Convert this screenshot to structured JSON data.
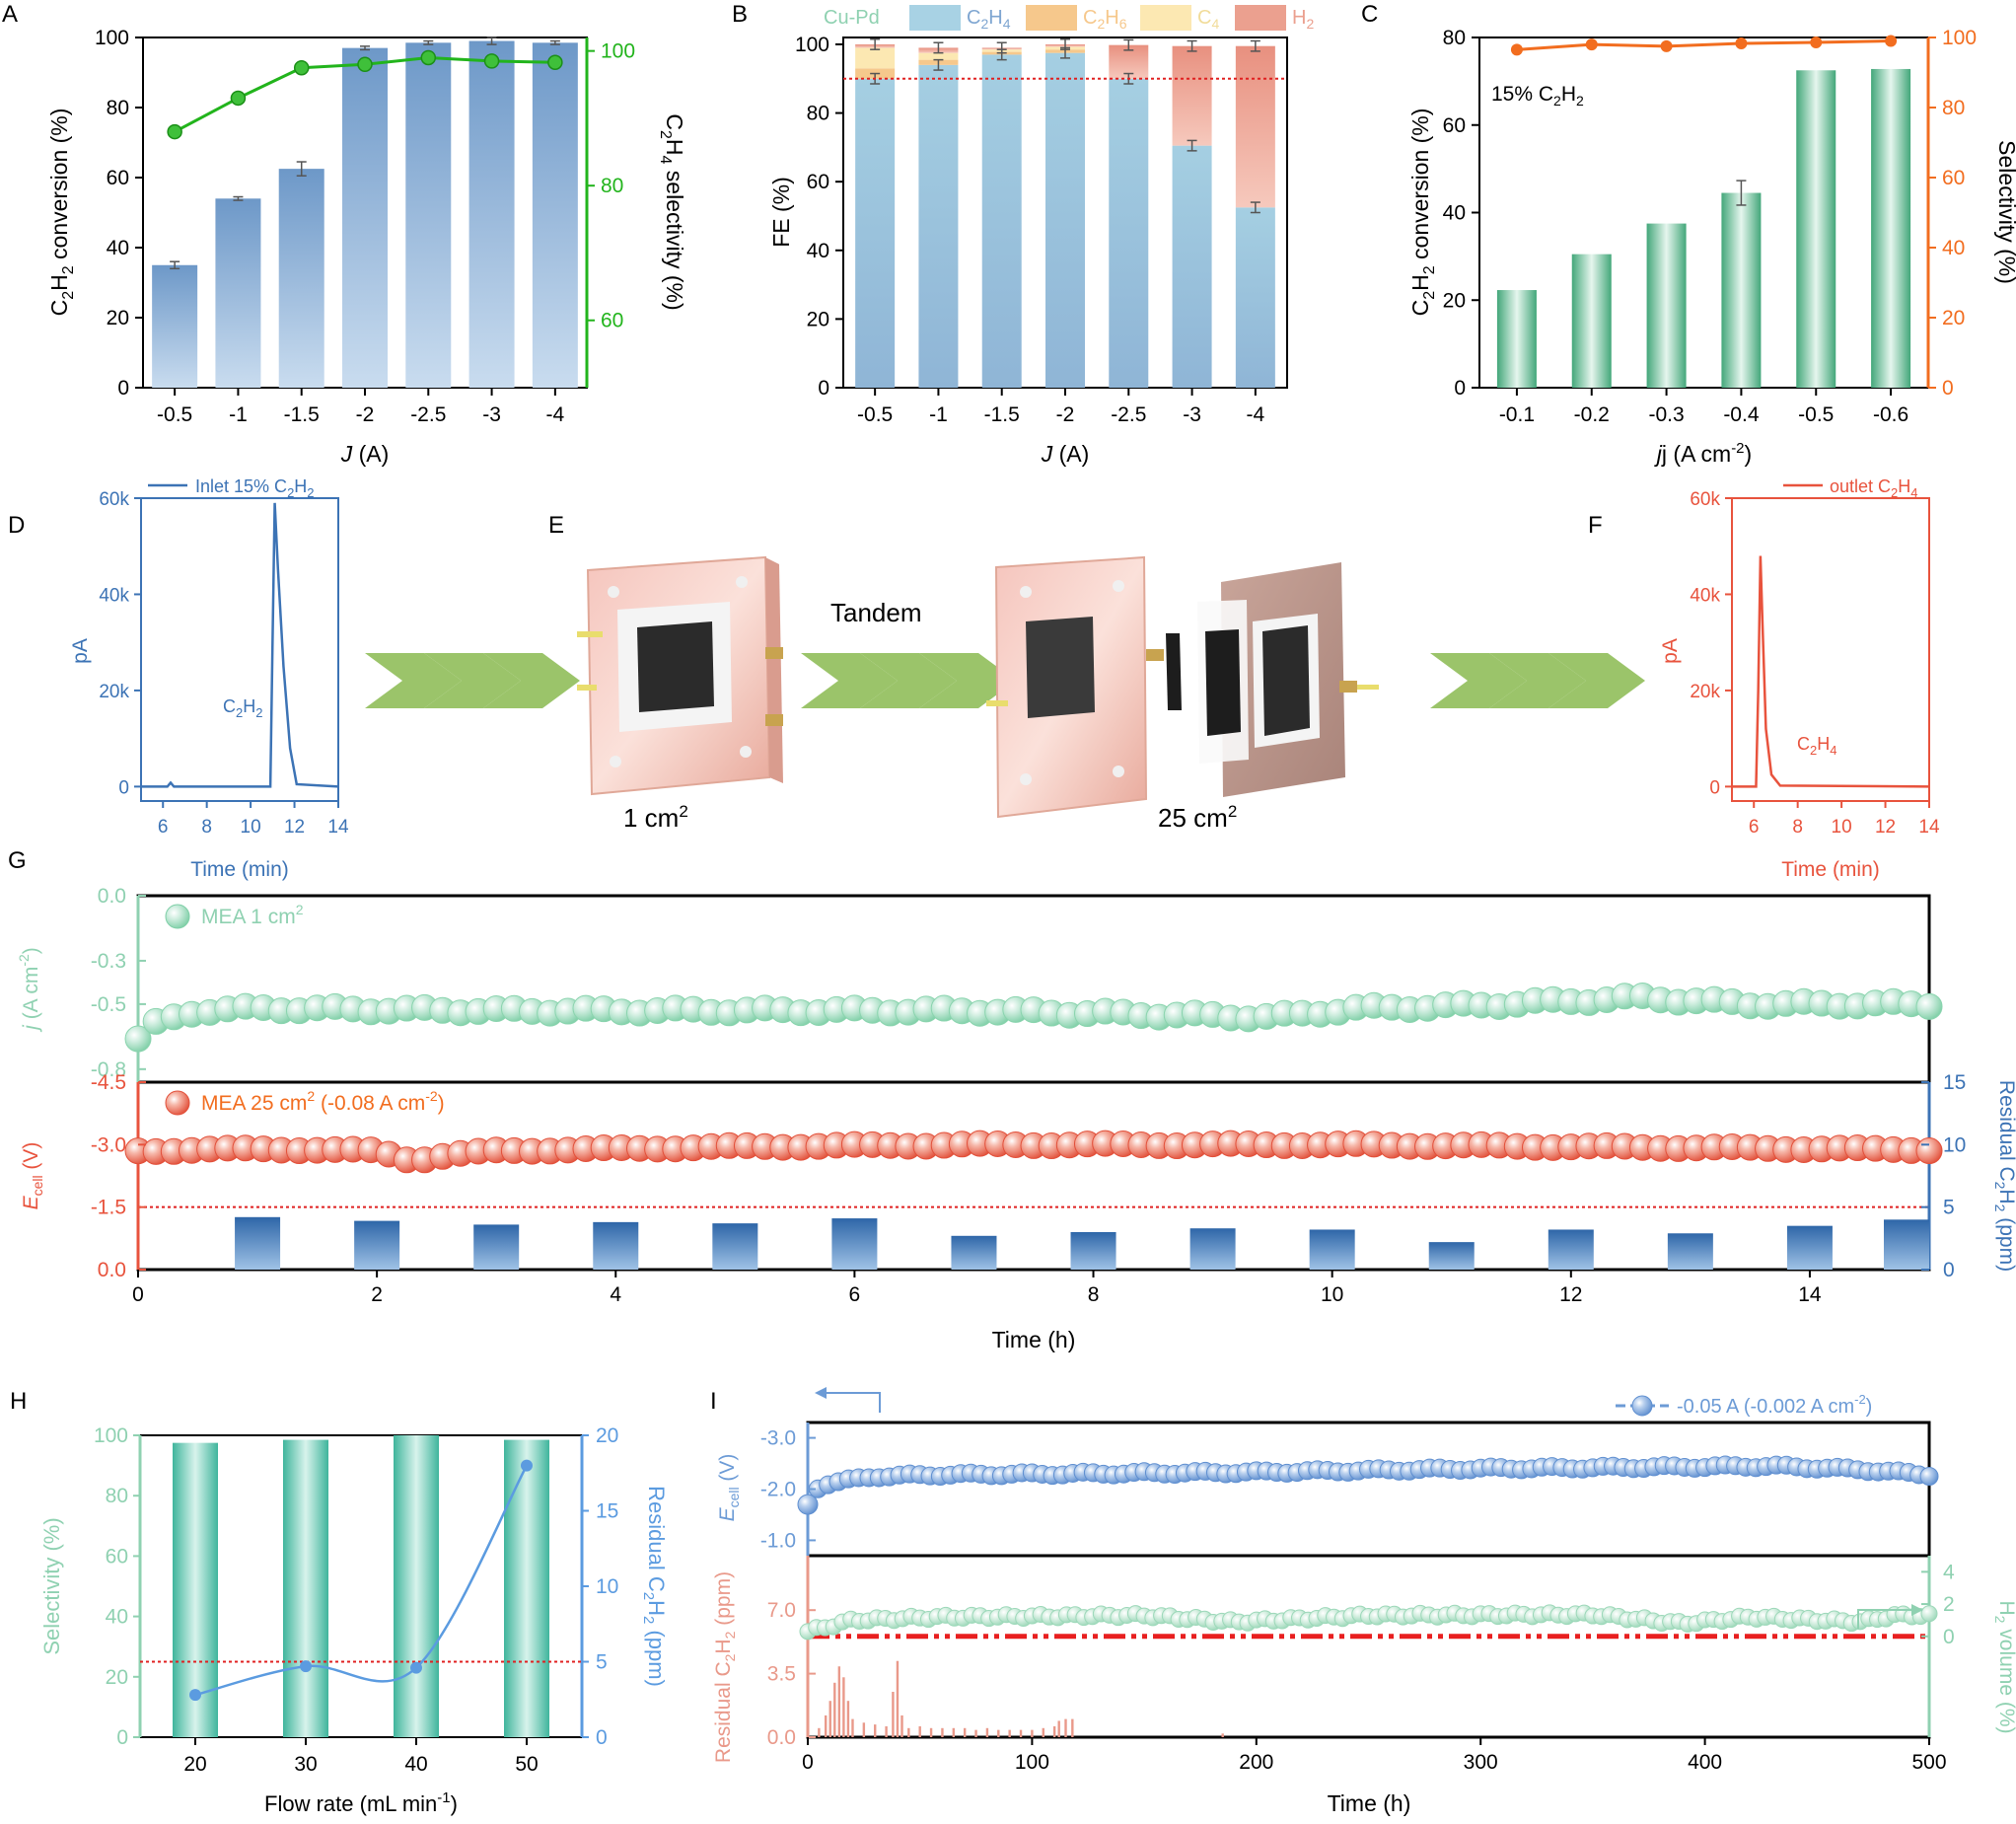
{
  "panels": {
    "A": "A",
    "B": "B",
    "C": "C",
    "D": "D",
    "E": "E",
    "F": "F",
    "G": "G",
    "H": "H",
    "I": "I"
  },
  "colors": {
    "blue": "#7fa6d1",
    "green": "#22b41c",
    "lightgreen": "#8fd1b1",
    "darkgreen": "#2f9a6a",
    "orange": "#f26d1f",
    "red": "#e8533d",
    "navy": "#3c73b5",
    "salmon": "#e9998a",
    "teal": "#5dbfa6",
    "c2h4": "#a8d2e4",
    "c2h6": "#f6c88c",
    "c4": "#fce8b2",
    "h2": "#eba08f"
  },
  "chart_data": [
    {
      "panel": "A",
      "type": "bar",
      "categories": [
        "-0.5",
        "-1",
        "-1.5",
        "-2",
        "-2.5",
        "-3",
        "-4"
      ],
      "series": [
        {
          "name": "C2H2 conversion",
          "values": [
            35,
            54,
            62.5,
            97,
            98.5,
            99,
            98.5
          ],
          "errors": [
            1,
            0.5,
            2,
            0.5,
            0.5,
            1,
            0.5
          ]
        },
        {
          "name": "C2H4 selectivity",
          "type": "line",
          "values": [
            88,
            93,
            97.5,
            98,
            99,
            98.5,
            98.3
          ]
        }
      ],
      "xlabel": "J (A)",
      "ylabel": "C2H2 conversion (%)",
      "ylabel_right": "C2H4 selectivity (%)",
      "ylim": [
        0,
        100
      ],
      "ylim_right": [
        50,
        102
      ],
      "yticks": [
        "0",
        "20",
        "40",
        "60",
        "80",
        "100"
      ],
      "yticks_right": [
        "60",
        "80",
        "100"
      ]
    },
    {
      "panel": "B",
      "type": "bar",
      "legend": [
        "Cu-Pd",
        "C2H4",
        "C2H6",
        "C4",
        "H2"
      ],
      "categories": [
        "-0.5",
        "-1",
        "-1.5",
        "-2",
        "-2.5",
        "-3",
        "-4"
      ],
      "series": [
        {
          "name": "C2H4",
          "values": [
            90,
            94,
            97,
            97.5,
            90,
            70.5,
            52.5
          ]
        },
        {
          "name": "C2H6",
          "values": [
            3,
            1.5,
            0.8,
            1,
            0,
            0,
            0
          ]
        },
        {
          "name": "C4",
          "values": [
            6,
            2,
            0.7,
            0.8,
            0,
            0,
            0
          ]
        },
        {
          "name": "H2",
          "values": [
            1,
            1.5,
            0.5,
            0.7,
            9.8,
            29,
            47
          ]
        }
      ],
      "reference_line": 90,
      "xlabel": "J (A)",
      "ylabel": "FE (%)",
      "ylim": [
        0,
        102
      ],
      "yticks": [
        "0",
        "20",
        "40",
        "60",
        "80",
        "100"
      ]
    },
    {
      "panel": "C",
      "type": "bar",
      "annotation": "15% C2H2",
      "categories": [
        "-0.1",
        "-0.2",
        "-0.3",
        "-0.4",
        "-0.5",
        "-0.6"
      ],
      "series": [
        {
          "name": "C2H2 conversion",
          "values": [
            22.3,
            30.5,
            37.5,
            44.5,
            72.5,
            72.8
          ],
          "errors": [
            0,
            0,
            0,
            2.8,
            0,
            0
          ]
        },
        {
          "name": "Selectivity",
          "type": "line",
          "values": [
            96.5,
            98,
            97.5,
            98.3,
            98.6,
            99
          ]
        }
      ],
      "xlabel": "j (A cm-2)",
      "ylabel": "C2H2 conversion (%)",
      "ylabel_right": "Selectivity (%)",
      "ylim": [
        0,
        80
      ],
      "ylim_right": [
        0,
        100
      ],
      "yticks": [
        "0",
        "20",
        "40",
        "60",
        "80"
      ],
      "yticks_right": [
        "0",
        "20",
        "40",
        "60",
        "80",
        "100"
      ]
    },
    {
      "panel": "D",
      "type": "line",
      "legend": "Inlet 15% C2H2",
      "peak_label": "C2H2",
      "xlabel": "Time (min)",
      "ylabel": "pA",
      "xlim": [
        5,
        14
      ],
      "ylim": [
        -3000,
        60000
      ],
      "xticks": [
        "6",
        "8",
        "10",
        "12",
        "14"
      ],
      "yticks": [
        "0",
        "20k",
        "40k",
        "60k"
      ],
      "x": [
        5,
        6.2,
        6.35,
        6.5,
        10.9,
        11.0,
        11.1,
        11.25,
        11.5,
        11.8,
        12.1,
        14
      ],
      "y": [
        0,
        0,
        800,
        0,
        0,
        30000,
        59000,
        45000,
        25000,
        8000,
        500,
        0
      ]
    },
    {
      "panel": "F",
      "type": "line",
      "legend": "outlet C2H4",
      "peak_label": "C2H4",
      "xlabel": "Time (min)",
      "ylabel": "pA",
      "xlim": [
        5,
        14
      ],
      "ylim": [
        -3000,
        60000
      ],
      "xticks": [
        "6",
        "8",
        "10",
        "12",
        "14"
      ],
      "yticks": [
        "0",
        "20k",
        "40k",
        "60k"
      ],
      "x": [
        5,
        6.1,
        6.2,
        6.3,
        6.4,
        6.55,
        6.8,
        7.2,
        14
      ],
      "y": [
        0,
        0,
        20000,
        48000,
        33000,
        12000,
        2500,
        200,
        0
      ]
    },
    {
      "panel": "G-top",
      "type": "scatter",
      "legend": "MEA 1 cm2",
      "ylabel": "j (A cm-2)",
      "ylim": [
        -0.86,
        0
      ],
      "yticks": [
        "0.0",
        "-0.3",
        "-0.5",
        "-0.8"
      ],
      "x_range": [
        0,
        15
      ],
      "keypoints_x": [
        0,
        0.1,
        0.5,
        1,
        3,
        7,
        9.5,
        10.2,
        11,
        12.6,
        13.5,
        15
      ],
      "keypoints_y": [
        -0.66,
        -0.6,
        -0.53,
        -0.52,
        -0.53,
        -0.53,
        -0.56,
        -0.52,
        -0.51,
        -0.47,
        -0.5,
        -0.5
      ]
    },
    {
      "panel": "G-bottom",
      "type": "scatter",
      "legend": "MEA 25 cm2 (-0.08 A cm-2)",
      "xlabel": "Time (h)",
      "ylabel": "Ecell (V)",
      "ylabel_right": "Residual C2H2 (ppm)",
      "ylim": [
        0,
        -4.5
      ],
      "ylim_right": [
        0,
        15
      ],
      "yticks": [
        "-4.5",
        "-3.0",
        "-1.5",
        "0.0"
      ],
      "yticks_right": [
        "0",
        "5",
        "10",
        "15"
      ],
      "xticks": [
        "0",
        "2",
        "4",
        "6",
        "8",
        "10",
        "12",
        "14"
      ],
      "x_range": [
        0,
        15
      ],
      "keypoints_x": [
        0,
        1,
        2,
        2.3,
        2.6,
        3,
        5,
        7,
        10,
        15
      ],
      "keypoints_y": [
        -2.85,
        -2.9,
        -2.85,
        -2.62,
        -2.75,
        -2.85,
        -2.95,
        -3.0,
        -3.0,
        -2.88
      ],
      "reference_line": -1.5,
      "bars": {
        "x": [
          1,
          2,
          3,
          4,
          5,
          6,
          7,
          8,
          9,
          10,
          11,
          12,
          13,
          14,
          15
        ],
        "values": [
          4.2,
          3.9,
          3.6,
          3.8,
          3.7,
          4.1,
          2.7,
          3.0,
          3.3,
          3.2,
          2.2,
          3.2,
          2.9,
          3.5,
          4.0
        ]
      }
    },
    {
      "panel": "H",
      "type": "bar",
      "categories": [
        "20",
        "30",
        "40",
        "50"
      ],
      "series": [
        {
          "name": "Selectivity",
          "values": [
            97.5,
            98.5,
            100,
            98.5
          ]
        },
        {
          "name": "Residual C2H2",
          "type": "line",
          "values": [
            2.8,
            4.7,
            4.6,
            18
          ]
        }
      ],
      "reference_line": 5,
      "xlabel": "Flow rate (mL min-1)",
      "ylabel": "Selectivity (%)",
      "ylabel_right": "Residual C2H2 (ppm)",
      "ylim": [
        0,
        100
      ],
      "ylim_right": [
        0,
        20
      ],
      "yticks": [
        "0",
        "20",
        "40",
        "60",
        "80",
        "100"
      ],
      "yticks_right": [
        "0",
        "5",
        "10",
        "15",
        "20"
      ],
      "xticks": [
        "20",
        "30",
        "40",
        "50"
      ]
    },
    {
      "panel": "I",
      "type": "scatter",
      "legend": "-0.05 A (-0.002 A cm-2)",
      "xlabel": "Time (h)",
      "ylabel_top": "Ecell (V)",
      "ylabel_bottom": "Residual C2H2 (ppm)",
      "ylabel_right": "H2 volume (%)",
      "ylim_top": [
        -0.7,
        -3.3
      ],
      "yticks_top": [
        "-3.0",
        "-2.0",
        "-1.0"
      ],
      "ylim_bottom": [
        0,
        10
      ],
      "yticks_bottom": [
        "0.0",
        "3.5",
        "7.0"
      ],
      "ylim_right": [
        -6.25,
        5.0
      ],
      "yticks_right": [
        "0",
        "2",
        "4"
      ],
      "xticks": [
        "0",
        "100",
        "200",
        "300",
        "400",
        "500"
      ],
      "x_range": [
        0,
        500
      ],
      "ecell_x": [
        0,
        3,
        8,
        15,
        30,
        60,
        120,
        200,
        300,
        430,
        470,
        500
      ],
      "ecell_y": [
        -1.7,
        -2.0,
        -2.1,
        -2.15,
        -2.25,
        -2.28,
        -2.3,
        -2.33,
        -2.4,
        -2.45,
        -2.38,
        -2.28
      ],
      "h2_x": [
        0,
        20,
        60,
        150,
        190,
        250,
        350,
        390,
        420,
        470,
        485,
        500
      ],
      "h2_y": [
        0.3,
        1.0,
        1.2,
        1.3,
        0.9,
        1.3,
        1.35,
        0.8,
        1.2,
        0.9,
        1.3,
        1.3
      ],
      "residual_bars": {
        "x": [
          5,
          8,
          10,
          12,
          14,
          16,
          18,
          20,
          25,
          30,
          35,
          38,
          40,
          42,
          45,
          50,
          55,
          60,
          65,
          70,
          75,
          80,
          85,
          90,
          95,
          100,
          105,
          110,
          112,
          115,
          118,
          185
        ],
        "values": [
          0.5,
          1.2,
          2.0,
          3.0,
          3.9,
          3.3,
          2.0,
          1.0,
          0.8,
          0.7,
          0.6,
          2.5,
          4.2,
          1.2,
          0.5,
          0.6,
          0.5,
          0.5,
          0.5,
          0.5,
          0.4,
          0.5,
          0.4,
          0.4,
          0.4,
          0.4,
          0.5,
          0.6,
          0.9,
          1.0,
          1.0,
          0.2
        ]
      },
      "reference_line": 0
    }
  ],
  "labels": {
    "A_xlabel_var": "J",
    "A_xlabel_unit": " (A)",
    "B_xlabel_var": "J",
    "B_xlabel_unit": " (A)",
    "C_xlabel": "j (A cm",
    "C_xlabel_sup": "-2",
    "leg_cupd": "Cu-Pd",
    "leg_c2h4": "C",
    "leg_c2h6": "C",
    "leg_c4": "C",
    "leg_h2": "H",
    "c_anno": "15% C",
    "e_tandem": "Tandem",
    "e_left": "1 cm",
    "e_right": "25 cm",
    "e_sup": "2",
    "d_legend": "Inlet 15% C",
    "f_legend": "outlet C",
    "time_min": "Time (min)",
    "pa": "pA",
    "g_leg1": "MEA  1 cm",
    "g_leg2": "MEA  25 cm",
    "g_leg2_tail": " (-0.08 A cm",
    "time_h": "Time (h)",
    "h_xlabel": "Flow rate (mL min",
    "i_legend": "-0.05 A (-0.002 A cm"
  }
}
